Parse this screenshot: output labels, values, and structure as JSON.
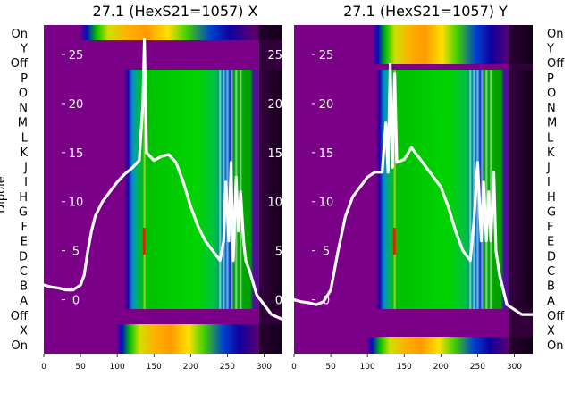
{
  "chart_data": [
    {
      "type": "heatmap",
      "title": "27.1 (HexS21=1057) X",
      "ylabel": "Dipole",
      "xlabel": "",
      "row_labels": [
        "On",
        "Y",
        "Off",
        "P",
        "O",
        "N",
        "M",
        "L",
        "K",
        "J",
        "I",
        "H",
        "G",
        "F",
        "E",
        "D",
        "C",
        "B",
        "A",
        "Off",
        "X",
        "On"
      ],
      "x_ticks": [
        0,
        50,
        100,
        150,
        200,
        250,
        300
      ],
      "xlim": [
        0,
        325
      ],
      "overlay_y_ticks": [
        0,
        5,
        10,
        15,
        20,
        25
      ],
      "overlay_ylim": [
        -5.5,
        28
      ],
      "overlay_series": {
        "x": [
          0,
          10,
          20,
          30,
          40,
          50,
          55,
          60,
          65,
          70,
          80,
          90,
          100,
          110,
          120,
          130,
          135,
          137,
          140,
          150,
          160,
          170,
          180,
          190,
          200,
          210,
          220,
          230,
          240,
          245,
          248,
          252,
          255,
          258,
          262,
          265,
          268,
          272,
          275,
          280,
          290,
          300,
          310,
          325
        ],
        "y": [
          1.5,
          1.3,
          1.2,
          1.0,
          1.0,
          1.5,
          2.5,
          5.0,
          7.0,
          8.5,
          10.0,
          11.0,
          12.0,
          12.8,
          13.4,
          14.2,
          20.0,
          26.5,
          15.0,
          14.2,
          14.6,
          14.8,
          14.0,
          12.0,
          9.5,
          7.5,
          6.0,
          5.0,
          4.0,
          6.0,
          12.0,
          6.0,
          14.0,
          4.0,
          12.5,
          7.0,
          11.0,
          6.0,
          4.0,
          3.0,
          0.5,
          -0.5,
          -1.5,
          -2.0
        ]
      }
    },
    {
      "type": "heatmap",
      "title": "27.1 (HexS21=1057) Y",
      "row_labels": [
        "On",
        "Y",
        "Off",
        "P",
        "O",
        "N",
        "M",
        "L",
        "K",
        "J",
        "I",
        "H",
        "G",
        "F",
        "E",
        "D",
        "C",
        "B",
        "A",
        "Off",
        "X",
        "On"
      ],
      "x_ticks": [
        0,
        50,
        100,
        150,
        200,
        250,
        300
      ],
      "xlim": [
        0,
        325
      ],
      "overlay_y_ticks": [
        0,
        5,
        10,
        15,
        20,
        25
      ],
      "overlay_ylim": [
        -5.5,
        28
      ],
      "overlay_series": {
        "x": [
          0,
          10,
          20,
          30,
          40,
          50,
          60,
          70,
          80,
          90,
          100,
          110,
          120,
          125,
          128,
          131,
          134,
          137,
          140,
          150,
          160,
          170,
          180,
          190,
          200,
          210,
          220,
          230,
          240,
          245,
          250,
          255,
          258,
          262,
          265,
          268,
          272,
          275,
          280,
          290,
          300,
          310,
          325
        ],
        "y": [
          0.0,
          -0.2,
          -0.3,
          -0.5,
          -0.2,
          1.0,
          5.0,
          8.5,
          10.5,
          11.5,
          12.5,
          13.0,
          13.0,
          18.0,
          13.0,
          24.0,
          13.5,
          23.0,
          14.0,
          14.3,
          15.5,
          14.5,
          13.5,
          12.5,
          11.5,
          9.5,
          7.0,
          5.0,
          4.0,
          8.0,
          14.0,
          6.0,
          12.0,
          6.0,
          11.0,
          6.0,
          13.0,
          5.0,
          2.5,
          -0.5,
          -1.0,
          -1.5,
          -1.5
        ]
      }
    }
  ]
}
